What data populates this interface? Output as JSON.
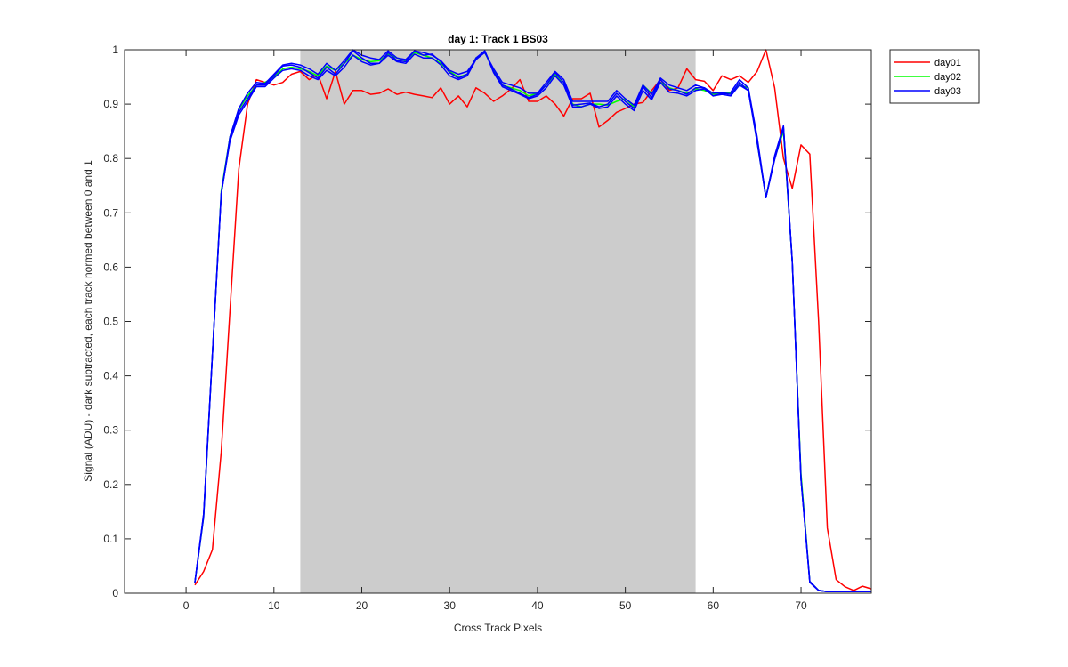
{
  "chart_data": {
    "type": "line",
    "title": "day 1: Track 1  BS03",
    "xlabel": "Cross Track Pixels",
    "ylabel": "Signal (ADU) - dark subtracted, each track normed between 0 and 1",
    "xlim": [
      -7,
      78
    ],
    "ylim": [
      0,
      1
    ],
    "xticks": [
      0,
      10,
      20,
      30,
      40,
      50,
      60,
      70
    ],
    "yticks": [
      0,
      0.1,
      0.2,
      0.3,
      0.4,
      0.5,
      0.6,
      0.7,
      0.8,
      0.9,
      1
    ],
    "ytick_labels": [
      "0",
      "0.1",
      "0.2",
      "0.3",
      "0.4",
      "0.5",
      "0.6",
      "0.7",
      "0.8",
      "0.9",
      "1"
    ],
    "shaded_region": {
      "x": [
        13,
        58
      ],
      "color": "#cccccc"
    },
    "grid": false,
    "legend_position": "outside-top-right",
    "series": [
      {
        "name": "day01",
        "color": "#ff0000",
        "linewidth": 1.5,
        "x": [
          1,
          2,
          3,
          4,
          5,
          6,
          7,
          8,
          9,
          10,
          11,
          12,
          13,
          14,
          15,
          16,
          17,
          18,
          19,
          20,
          21,
          22,
          23,
          24,
          25,
          26,
          27,
          28,
          29,
          30,
          31,
          32,
          33,
          34,
          35,
          36,
          37,
          38,
          39,
          40,
          41,
          42,
          43,
          44,
          45,
          46,
          47,
          48,
          49,
          50,
          51,
          52,
          53,
          54,
          55,
          56,
          57,
          58,
          59,
          60,
          61,
          62,
          63,
          64,
          65,
          66,
          67,
          68,
          69,
          70,
          71,
          72,
          73,
          74,
          75,
          76,
          77,
          78
        ],
        "values": [
          0.015,
          0.04,
          0.08,
          0.26,
          0.52,
          0.78,
          0.9,
          0.945,
          0.94,
          0.935,
          0.94,
          0.955,
          0.96,
          0.945,
          0.955,
          0.91,
          0.96,
          0.9,
          0.925,
          0.925,
          0.918,
          0.92,
          0.928,
          0.918,
          0.922,
          0.918,
          0.915,
          0.912,
          0.93,
          0.9,
          0.915,
          0.895,
          0.93,
          0.92,
          0.905,
          0.915,
          0.928,
          0.945,
          0.905,
          0.905,
          0.915,
          0.9,
          0.878,
          0.91,
          0.91,
          0.92,
          0.858,
          0.87,
          0.885,
          0.892,
          0.9,
          0.903,
          0.925,
          0.945,
          0.925,
          0.93,
          0.965,
          0.945,
          0.942,
          0.925,
          0.952,
          0.945,
          0.952,
          0.94,
          0.96,
          1.0,
          0.93,
          0.8,
          0.745,
          0.825,
          0.808,
          0.5,
          0.12,
          0.025,
          0.012,
          0.005,
          0.013,
          0.008
        ]
      },
      {
        "name": "day02",
        "color": "#00ff00",
        "linewidth": 1.5,
        "x": [
          1,
          2,
          3,
          4,
          5,
          6,
          7,
          8,
          9,
          10,
          11,
          12,
          13,
          14,
          15,
          16,
          17,
          18,
          19,
          20,
          21,
          22,
          23,
          24,
          25,
          26,
          27,
          28,
          29,
          30,
          31,
          32,
          33,
          34,
          35,
          36,
          37,
          38,
          39,
          40,
          41,
          42,
          43,
          44,
          45,
          46,
          47,
          48,
          49,
          50,
          51,
          52,
          53,
          54,
          55,
          56,
          57,
          58,
          59,
          60,
          61,
          62,
          63,
          64,
          65,
          66,
          67,
          68,
          69,
          70,
          71,
          72,
          73,
          74,
          75,
          76,
          77,
          78
        ],
        "values": [
          0.02,
          0.14,
          0.44,
          0.74,
          0.84,
          0.89,
          0.915,
          0.935,
          0.94,
          0.95,
          0.965,
          0.968,
          0.965,
          0.96,
          0.952,
          0.97,
          0.962,
          0.975,
          0.99,
          0.982,
          0.978,
          0.98,
          0.992,
          0.985,
          0.98,
          0.995,
          0.99,
          0.985,
          0.975,
          0.96,
          0.95,
          0.955,
          0.985,
          0.995,
          0.962,
          0.935,
          0.93,
          0.925,
          0.915,
          0.92,
          0.935,
          0.955,
          0.935,
          0.9,
          0.895,
          0.9,
          0.9,
          0.898,
          0.905,
          0.91,
          0.895,
          0.935,
          0.92,
          0.94,
          0.93,
          0.925,
          0.92,
          0.928,
          0.925,
          0.918,
          0.92,
          0.92,
          0.935,
          0.93,
          0.83,
          0.73,
          0.8,
          0.85,
          0.61,
          0.22,
          0.022,
          0.005,
          0.003,
          0.003,
          0.003,
          0.003,
          0.003,
          0.003
        ]
      },
      {
        "name": "day03",
        "color": "#0000ff",
        "linewidth": 1.5,
        "x": [
          1,
          2,
          3,
          4,
          5,
          6,
          7,
          8,
          9,
          10,
          11,
          12,
          13,
          14,
          15,
          16,
          17,
          18,
          19,
          20,
          21,
          22,
          23,
          24,
          25,
          26,
          27,
          28,
          29,
          30,
          31,
          32,
          33,
          34,
          35,
          36,
          37,
          38,
          39,
          40,
          41,
          42,
          43,
          44,
          45,
          46,
          47,
          48,
          49,
          50,
          51,
          52,
          53,
          54,
          55,
          56,
          57,
          58,
          59,
          60,
          61,
          62,
          63,
          64,
          65,
          66,
          67,
          68,
          69,
          70,
          71,
          72,
          73,
          74,
          75,
          76,
          77,
          78
        ],
        "values": [
          0.02,
          0.145,
          0.44,
          0.735,
          0.835,
          0.885,
          0.91,
          0.935,
          0.935,
          0.952,
          0.97,
          0.972,
          0.968,
          0.958,
          0.948,
          0.968,
          0.955,
          0.975,
          0.998,
          0.985,
          0.975,
          0.975,
          0.995,
          0.98,
          0.978,
          0.998,
          0.99,
          0.992,
          0.978,
          0.958,
          0.948,
          0.955,
          0.985,
          0.998,
          0.96,
          0.935,
          0.928,
          0.92,
          0.912,
          0.918,
          0.935,
          0.958,
          0.94,
          0.898,
          0.9,
          0.902,
          0.895,
          0.9,
          0.92,
          0.905,
          0.892,
          0.932,
          0.912,
          0.945,
          0.928,
          0.925,
          0.918,
          0.93,
          0.93,
          0.915,
          0.92,
          0.918,
          0.94,
          0.925,
          0.835,
          0.728,
          0.8,
          0.858,
          0.61,
          0.21,
          0.02,
          0.005,
          0.003,
          0.003,
          0.003,
          0.003,
          0.003,
          0.003
        ]
      },
      {
        "name": "",
        "color": "#0000ff",
        "linewidth": 1.5,
        "x": [
          1,
          2,
          3,
          4,
          5,
          6,
          7,
          8,
          9,
          10,
          11,
          12,
          13,
          14,
          15,
          16,
          17,
          18,
          19,
          20,
          21,
          22,
          23,
          24,
          25,
          26,
          27,
          28,
          29,
          30,
          31,
          32,
          33,
          34,
          35,
          36,
          37,
          38,
          39,
          40,
          41,
          42,
          43,
          44,
          45,
          46,
          47,
          48,
          49,
          50,
          51,
          52,
          53,
          54,
          55,
          56,
          57,
          58,
          59,
          60,
          61,
          62,
          63,
          64,
          65,
          66,
          67,
          68,
          69,
          70,
          71,
          72,
          73,
          74,
          75,
          76,
          77,
          78
        ],
        "values": [
          0.02,
          0.14,
          0.44,
          0.735,
          0.84,
          0.892,
          0.92,
          0.94,
          0.938,
          0.955,
          0.972,
          0.975,
          0.972,
          0.965,
          0.955,
          0.975,
          0.962,
          0.98,
          1.0,
          0.99,
          0.985,
          0.982,
          0.998,
          0.985,
          0.982,
          0.998,
          0.995,
          0.99,
          0.98,
          0.962,
          0.955,
          0.96,
          0.982,
          0.995,
          0.965,
          0.94,
          0.935,
          0.93,
          0.92,
          0.92,
          0.94,
          0.96,
          0.945,
          0.905,
          0.905,
          0.905,
          0.905,
          0.905,
          0.925,
          0.91,
          0.898,
          0.935,
          0.918,
          0.948,
          0.935,
          0.93,
          0.925,
          0.935,
          0.93,
          0.92,
          0.922,
          0.922,
          0.945,
          0.93,
          0.84,
          0.728,
          0.805,
          0.86,
          0.61,
          0.21,
          0.02,
          0.005,
          0.003,
          0.003,
          0.003,
          0.003,
          0.003,
          0.003
        ]
      },
      {
        "name": "",
        "color": "#0000ff",
        "linewidth": 1.5,
        "x": [
          1,
          2,
          3,
          4,
          5,
          6,
          7,
          8,
          9,
          10,
          11,
          12,
          13,
          14,
          15,
          16,
          17,
          18,
          19,
          20,
          21,
          22,
          23,
          24,
          25,
          26,
          27,
          28,
          29,
          30,
          31,
          32,
          33,
          34,
          35,
          36,
          37,
          38,
          39,
          40,
          41,
          42,
          43,
          44,
          45,
          46,
          47,
          48,
          49,
          50,
          51,
          52,
          53,
          54,
          55,
          56,
          57,
          58,
          59,
          60,
          61,
          62,
          63,
          64,
          65,
          66,
          67,
          68,
          69,
          70,
          71,
          72,
          73,
          74,
          75,
          76,
          77,
          78
        ],
        "values": [
          0.02,
          0.145,
          0.44,
          0.735,
          0.832,
          0.88,
          0.905,
          0.932,
          0.932,
          0.948,
          0.962,
          0.965,
          0.962,
          0.952,
          0.945,
          0.962,
          0.952,
          0.968,
          0.99,
          0.978,
          0.972,
          0.975,
          0.99,
          0.978,
          0.975,
          0.992,
          0.985,
          0.985,
          0.972,
          0.952,
          0.945,
          0.952,
          0.982,
          0.998,
          0.958,
          0.932,
          0.925,
          0.918,
          0.91,
          0.915,
          0.93,
          0.952,
          0.935,
          0.895,
          0.895,
          0.9,
          0.892,
          0.895,
          0.915,
          0.9,
          0.888,
          0.925,
          0.908,
          0.94,
          0.922,
          0.92,
          0.915,
          0.925,
          0.928,
          0.915,
          0.918,
          0.915,
          0.935,
          0.925,
          0.83,
          0.728,
          0.798,
          0.855,
          0.61,
          0.21,
          0.022,
          0.005,
          0.003,
          0.003,
          0.003,
          0.003,
          0.003,
          0.003
        ]
      }
    ]
  }
}
